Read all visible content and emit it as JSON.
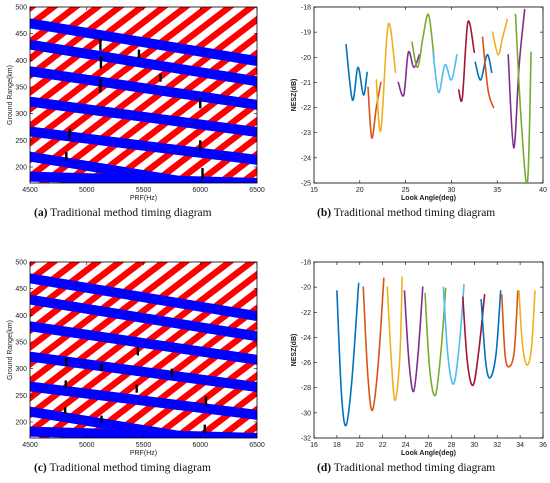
{
  "captions": {
    "a": {
      "letter": "(a)",
      "text": "Traditional method timing diagram"
    },
    "b": {
      "letter": "(b)",
      "text": "Traditional method timing diagram"
    },
    "c": {
      "letter": "(c)",
      "text": "Traditional method timing diagram"
    },
    "d": {
      "letter": "(d)",
      "text": "Traditional method timing diagram"
    }
  },
  "colors": {
    "transmit_red": "#ff0000",
    "nadir_blue": "#0000ff",
    "marker_black": "#000000",
    "nesz_palette": [
      "#0072bd",
      "#d95319",
      "#edb120",
      "#7e2f8e",
      "#77ac30",
      "#4dbeee",
      "#a2142f"
    ]
  },
  "chart_data": [
    {
      "id": "a",
      "type": "heatmap",
      "xlabel": "PRF(Hz)",
      "ylabel": "Ground Range(km)",
      "xlim": [
        4500,
        6500
      ],
      "ylim": [
        170,
        500
      ],
      "xticks": [
        4500,
        5000,
        5500,
        6000,
        6500
      ],
      "yticks": [
        200,
        250,
        300,
        350,
        400,
        450,
        500
      ],
      "grid": false,
      "nadir_bands": [
        {
          "y0": 182,
          "y1": 170
        },
        {
          "y0": 220,
          "y1": 150
        },
        {
          "y0": 267,
          "y1": 213
        },
        {
          "y0": 323,
          "y1": 265
        },
        {
          "y0": 380,
          "y1": 316
        },
        {
          "y0": 430,
          "y1": 360
        },
        {
          "y0": 470,
          "y1": 398
        }
      ],
      "selected_segments": [
        {
          "x": 4820,
          "y0": 212,
          "y1": 228
        },
        {
          "x": 4850,
          "y0": 252,
          "y1": 272
        },
        {
          "x": 5120,
          "y0": 340,
          "y1": 365
        },
        {
          "x": 5125,
          "y0": 385,
          "y1": 408
        },
        {
          "x": 5120,
          "y0": 418,
          "y1": 440
        },
        {
          "x": 5460,
          "y0": 405,
          "y1": 420
        },
        {
          "x": 5650,
          "y0": 360,
          "y1": 375
        },
        {
          "x": 6000,
          "y0": 230,
          "y1": 250
        },
        {
          "x": 6020,
          "y0": 178,
          "y1": 198
        },
        {
          "x": 6000,
          "y0": 310,
          "y1": 330
        }
      ]
    },
    {
      "id": "b",
      "type": "line",
      "xlabel": "Look Angle(deg)",
      "ylabel": "NESZ(dB)",
      "xlim": [
        15,
        40
      ],
      "ylim": [
        -25,
        -18
      ],
      "xticks": [
        15,
        20,
        25,
        30,
        35,
        40
      ],
      "yticks": [
        -25,
        -24,
        -23,
        -22,
        -21,
        -20,
        -19,
        -18
      ],
      "grid": false,
      "series": [
        {
          "x": [
            18.5,
            19.2,
            19.8,
            20.4,
            20.8
          ],
          "y": [
            -19.5,
            -21.7,
            -20.4,
            -21.5,
            -20.6
          ]
        },
        {
          "x": [
            20.9,
            21.3,
            21.8,
            22.3
          ],
          "y": [
            -21.2,
            -23.2,
            -22.0,
            -21.0
          ]
        },
        {
          "x": [
            21.8,
            22.3,
            23.1,
            23.9
          ],
          "y": [
            -20.9,
            -22.9,
            -18.7,
            -20.6
          ]
        },
        {
          "x": [
            24.2,
            24.8,
            25.3,
            25.9,
            26.5
          ],
          "y": [
            -21.0,
            -21.5,
            -19.8,
            -20.4,
            -19.9
          ]
        },
        {
          "x": [
            25.7,
            26.3,
            26.9,
            27.5,
            28.1
          ],
          "y": [
            -19.4,
            -20.4,
            -19.2,
            -18.3,
            -20.0
          ]
        },
        {
          "x": [
            28.0,
            28.6,
            29.3,
            30.0,
            30.6
          ],
          "y": [
            -19.8,
            -21.4,
            -20.3,
            -20.9,
            -19.9
          ]
        },
        {
          "x": [
            30.8,
            31.2,
            31.8,
            32.5
          ],
          "y": [
            -21.3,
            -21.6,
            -18.6,
            -19.8
          ]
        },
        {
          "x": [
            32.6,
            33.2,
            33.9,
            34.4
          ],
          "y": [
            -20.2,
            -20.9,
            -19.9,
            -20.6
          ]
        },
        {
          "x": [
            33.4,
            34.0,
            34.6
          ],
          "y": [
            -19.2,
            -21.3,
            -22.0
          ]
        },
        {
          "x": [
            34.5,
            35.1,
            35.6,
            36.1
          ],
          "y": [
            -19.0,
            -19.9,
            -19.2,
            -18.5
          ]
        },
        {
          "x": [
            36.2,
            36.8,
            37.4,
            38.0
          ],
          "y": [
            -19.9,
            -23.6,
            -20.3,
            -18.1
          ]
        },
        {
          "x": [
            37.0,
            37.6,
            38.3,
            38.7
          ],
          "y": [
            -18.3,
            -22.4,
            -25.0,
            -19.8
          ]
        }
      ]
    },
    {
      "id": "c",
      "type": "heatmap",
      "xlabel": "PRF(Hz)",
      "ylabel": "Ground Range(km)",
      "xlim": [
        4500,
        6500
      ],
      "ylim": [
        170,
        500
      ],
      "xticks": [
        4500,
        5000,
        5500,
        6000,
        6500
      ],
      "yticks": [
        200,
        250,
        300,
        350,
        400,
        450,
        500
      ],
      "grid": false,
      "nadir_bands": [
        {
          "y0": 182,
          "y1": 170
        },
        {
          "y0": 220,
          "y1": 150
        },
        {
          "y0": 267,
          "y1": 213
        },
        {
          "y0": 323,
          "y1": 265
        },
        {
          "y0": 380,
          "y1": 316
        },
        {
          "y0": 430,
          "y1": 360
        },
        {
          "y0": 470,
          "y1": 398
        }
      ],
      "selected_segments": [
        {
          "x": 4810,
          "y0": 215,
          "y1": 228
        },
        {
          "x": 4815,
          "y0": 263,
          "y1": 278
        },
        {
          "x": 4820,
          "y0": 305,
          "y1": 320
        },
        {
          "x": 5130,
          "y0": 198,
          "y1": 212
        },
        {
          "x": 5130,
          "y0": 295,
          "y1": 310
        },
        {
          "x": 5440,
          "y0": 255,
          "y1": 270
        },
        {
          "x": 5450,
          "y0": 325,
          "y1": 340
        },
        {
          "x": 5750,
          "y0": 285,
          "y1": 300
        },
        {
          "x": 6040,
          "y0": 180,
          "y1": 195
        },
        {
          "x": 6050,
          "y0": 230,
          "y1": 248
        }
      ]
    },
    {
      "id": "d",
      "type": "line",
      "xlabel": "Look Angle(deg)",
      "ylabel": "NESZ(dB)",
      "xlim": [
        16,
        36
      ],
      "ylim": [
        -32,
        -18
      ],
      "xticks": [
        16,
        18,
        20,
        22,
        24,
        26,
        28,
        30,
        32,
        34,
        36
      ],
      "yticks": [
        -32,
        -30,
        -28,
        -26,
        -24,
        -22,
        -20,
        -18
      ],
      "grid": false,
      "series": [
        {
          "x": [
            18.0,
            18.4,
            18.8,
            19.3,
            19.9
          ],
          "y": [
            -20.3,
            -28.5,
            -31.0,
            -27.5,
            -19.7
          ]
        },
        {
          "x": [
            20.3,
            20.7,
            21.1,
            21.6,
            22.1
          ],
          "y": [
            -20.0,
            -27.0,
            -29.8,
            -26.2,
            -19.3
          ]
        },
        {
          "x": [
            22.4,
            22.8,
            23.1,
            23.5,
            23.7
          ],
          "y": [
            -20.0,
            -26.5,
            -29.0,
            -25.5,
            -19.2
          ]
        },
        {
          "x": [
            23.9,
            24.3,
            24.7,
            25.1,
            25.5
          ],
          "y": [
            -20.3,
            -26.0,
            -28.3,
            -25.2,
            -20.0
          ]
        },
        {
          "x": [
            25.7,
            26.1,
            26.6,
            27.1,
            27.5
          ],
          "y": [
            -20.5,
            -26.5,
            -28.6,
            -25.0,
            -20.1
          ]
        },
        {
          "x": [
            27.3,
            27.7,
            28.2,
            28.7,
            29.1
          ],
          "y": [
            -20.0,
            -25.5,
            -27.7,
            -24.5,
            -19.8
          ]
        },
        {
          "x": [
            29.0,
            29.4,
            29.9,
            30.4,
            30.9
          ],
          "y": [
            -20.8,
            -26.0,
            -27.8,
            -25.0,
            -20.6
          ]
        },
        {
          "x": [
            30.6,
            31.0,
            31.4,
            31.9,
            32.3
          ],
          "y": [
            -21.0,
            -26.0,
            -27.2,
            -25.3,
            -20.3
          ]
        },
        {
          "x": [
            32.4,
            32.7,
            33.1,
            33.5,
            33.8
          ],
          "y": [
            -20.6,
            -25.5,
            -26.3,
            -25.0,
            -20.3
          ]
        },
        {
          "x": [
            33.9,
            34.2,
            34.6,
            35.0,
            35.3
          ],
          "y": [
            -20.3,
            -24.5,
            -26.2,
            -24.8,
            -20.3
          ]
        }
      ]
    }
  ]
}
